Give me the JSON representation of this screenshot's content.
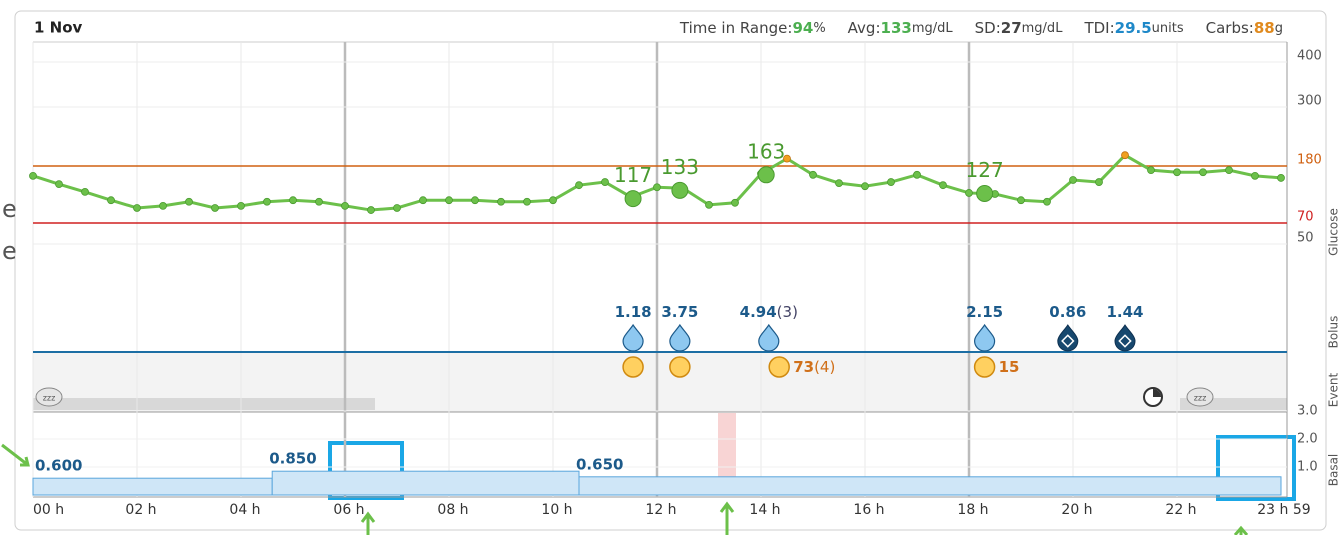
{
  "header": {
    "date": "1 Nov",
    "stats": [
      {
        "label": "Time in Range:",
        "value": "94",
        "unit": "%",
        "color": "#4caf50"
      },
      {
        "label": "Avg:",
        "value": "133",
        "unit": "mg/dL",
        "color": "#4caf50"
      },
      {
        "label": "SD:",
        "value": "27",
        "unit": "mg/dL",
        "color": "#444444"
      },
      {
        "label": "TDI:",
        "value": "29.5",
        "unit": "units",
        "color": "#1e88c8"
      },
      {
        "label": "Carbs:",
        "value": "88",
        "unit": "g",
        "color": "#e08a1e"
      }
    ]
  },
  "left_fragment": [
    "e",
    "e"
  ],
  "x_axis": {
    "ticks": [
      {
        "value": 0,
        "label": "00 h"
      },
      {
        "value": 2,
        "label": "02 h"
      },
      {
        "value": 4,
        "label": "04 h"
      },
      {
        "value": 6,
        "label": "06 h"
      },
      {
        "value": 8,
        "label": "08 h"
      },
      {
        "value": 10,
        "label": "10 h"
      },
      {
        "value": 12,
        "label": "12 h"
      },
      {
        "value": 14,
        "label": "14 h"
      },
      {
        "value": 16,
        "label": "16 h"
      },
      {
        "value": 18,
        "label": "18 h"
      },
      {
        "value": 20,
        "label": "20 h"
      },
      {
        "value": 22,
        "label": "22 h"
      },
      {
        "value": 23.98,
        "label": "23 h 59"
      }
    ]
  },
  "glucose": {
    "label": "Glucose",
    "yticks": [
      400,
      300,
      180,
      70,
      50
    ],
    "high": 180,
    "low": 70,
    "color": "#6cc04a",
    "high_color": "#f0a020",
    "times": [
      0,
      0.5,
      1,
      1.5,
      2,
      2.5,
      3,
      3.5,
      4,
      4.5,
      5,
      5.5,
      6,
      6.5,
      7,
      7.5,
      8,
      8.5,
      9,
      9.5,
      10,
      10.5,
      11,
      11.5,
      12,
      12.5,
      13,
      13.5,
      14,
      14.5,
      15,
      15.5,
      16,
      16.5,
      17,
      17.5,
      18,
      18.5,
      19,
      19.5,
      20,
      20.5,
      21,
      21.5,
      22,
      22.5,
      23,
      23.5,
      24
    ],
    "values": [
      161,
      145,
      130,
      114,
      99,
      103,
      111,
      99,
      103,
      111,
      114,
      111,
      103,
      95,
      99,
      114,
      114,
      114,
      111,
      111,
      114,
      143,
      149,
      120,
      139,
      137,
      105,
      109,
      165,
      195,
      163,
      147,
      141,
      149,
      163,
      143,
      128,
      126,
      114,
      111,
      153,
      149,
      202,
      172,
      168,
      168,
      172,
      161,
      157
    ],
    "points": [
      {
        "time": 11.54,
        "value": 117
      },
      {
        "time": 12.44,
        "value": 133
      },
      {
        "time": 14.1,
        "value": 163
      },
      {
        "time": 18.3,
        "value": 127
      }
    ]
  },
  "bolus": {
    "label": "Bolus",
    "doses": [
      {
        "time": 11.54,
        "value": 1.18
      },
      {
        "time": 12.44,
        "value": 3.75
      },
      {
        "time": 14.15,
        "value": 4.94,
        "count": "(3)"
      },
      {
        "time": 18.3,
        "value": 2.15
      },
      {
        "time": 19.9,
        "value": 0.86,
        "auto": true
      },
      {
        "time": 21.0,
        "value": 1.44,
        "auto": true
      }
    ]
  },
  "carbs": [
    {
      "time": 11.54
    },
    {
      "time": 12.44
    },
    {
      "time": 14.35,
      "value": 73,
      "count": "(4)"
    },
    {
      "time": 18.3,
      "value": 15
    }
  ],
  "event": {
    "label": "Event"
  },
  "basal": {
    "label": "Basal",
    "yticks": [
      {
        "value": 3,
        "label": "3.0"
      },
      {
        "value": 2,
        "label": "2.0"
      },
      {
        "value": 1,
        "label": "1.0"
      }
    ],
    "segments": [
      {
        "start": 0,
        "end": 4.6,
        "rate": 0.6,
        "label": "0.600"
      },
      {
        "start": 4.6,
        "end": 10.5,
        "rate": 0.85,
        "label": "0.850"
      },
      {
        "start": 10.5,
        "end": 24,
        "rate": 0.65,
        "label": "0.650"
      }
    ]
  }
}
